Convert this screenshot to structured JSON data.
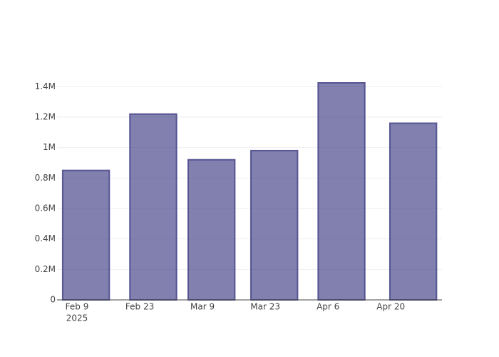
{
  "chart_data": {
    "type": "bar",
    "x": [
      "2025-02-11",
      "2025-02-26",
      "2025-03-11",
      "2025-03-25",
      "2025-04-09",
      "2025-04-25"
    ],
    "values": [
      850000,
      1220000,
      920000,
      980000,
      1425000,
      1160000
    ],
    "color": "#4b4a8c",
    "xlim": [
      "2025-02-04T13:00",
      "2025-05-01T10:00"
    ],
    "xticks": [
      {
        "value": "2025-02-09",
        "label": "Feb 9"
      },
      {
        "value": "2025-02-23",
        "label": "Feb 23"
      },
      {
        "value": "2025-03-09",
        "label": "Mar 9"
      },
      {
        "value": "2025-03-23",
        "label": "Mar 23"
      },
      {
        "value": "2025-04-06",
        "label": "Apr 6"
      },
      {
        "value": "2025-04-20",
        "label": "Apr 20"
      }
    ],
    "x_year": "2025",
    "ylim": [
      0,
      1500000
    ],
    "yticks": [
      0,
      {
        "value": 200000,
        "label": "0.2M"
      },
      {
        "value": 400000,
        "label": "0.4M"
      },
      {
        "value": 600000,
        "label": "0.6M"
      },
      {
        "value": 800000,
        "label": "0.8M"
      },
      {
        "value": 1000000,
        "label": "1M"
      },
      {
        "value": 1200000,
        "label": "1.2M"
      },
      {
        "value": 1400000,
        "label": "1.4M"
      }
    ],
    "grid": true
  }
}
